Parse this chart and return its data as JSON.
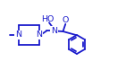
{
  "bg_color": "#ffffff",
  "line_color": "#1a1acc",
  "text_color": "#1a1acc",
  "line_width": 1.3,
  "font_size": 6.8,
  "figw": 1.5,
  "figh": 0.78,
  "dpi": 100,
  "xlim": [
    0,
    15
  ],
  "ylim": [
    0,
    7.8
  ]
}
